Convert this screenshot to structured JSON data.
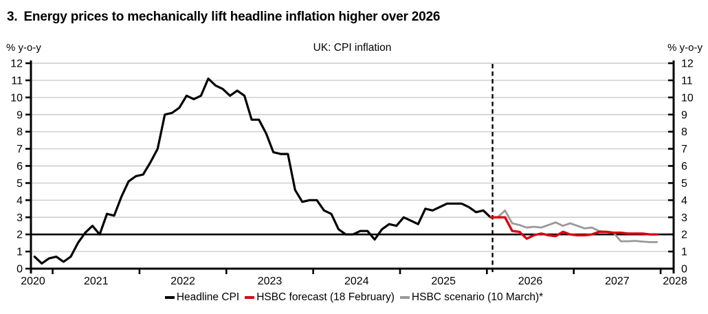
{
  "header": {
    "title_number": "3.",
    "title_text": "Energy prices to mechanically lift headline inflation higher over 2026"
  },
  "colors": {
    "grid": "#cbcbcb",
    "axis": "#000000",
    "target_line": "#000000",
    "divider": "#000000",
    "background": "#ffffff"
  },
  "chart_data": {
    "type": "line",
    "title": "UK: CPI inflation",
    "left_axis_label": "% y-o-y",
    "right_axis_label": "% y-o-y",
    "ylim": [
      0,
      12
    ],
    "yticks": [
      0,
      1,
      2,
      3,
      4,
      5,
      6,
      7,
      8,
      9,
      10,
      11,
      12
    ],
    "x_domain_years": [
      2020.75,
      2028.15
    ],
    "year_ticks": [
      2021,
      2022,
      2023,
      2024,
      2025,
      2026,
      2027,
      2028
    ],
    "year_labels": [
      "2020",
      "2021",
      "2022",
      "2023",
      "2024",
      "2025",
      "2026",
      "2027",
      "2028"
    ],
    "grid": true,
    "target_line_y": 2,
    "forecast_divider_year": 2026.065,
    "legend_position": "bottom",
    "series": [
      {
        "id": "headline-cpi",
        "name": "Headline CPI",
        "color": "#000000",
        "start_year": 2020,
        "start_month": 10,
        "values": [
          0.7,
          0.3,
          0.6,
          0.7,
          0.4,
          0.7,
          1.5,
          2.1,
          2.5,
          2.0,
          3.2,
          3.1,
          4.2,
          5.1,
          5.4,
          5.5,
          6.2,
          7.0,
          9.0,
          9.1,
          9.4,
          10.1,
          9.9,
          10.1,
          11.1,
          10.7,
          10.5,
          10.1,
          10.4,
          10.1,
          8.7,
          8.7,
          7.9,
          6.8,
          6.7,
          6.7,
          4.6,
          3.9,
          4.0,
          4.0,
          3.4,
          3.2,
          2.3,
          2.0,
          2.0,
          2.2,
          2.2,
          1.7,
          2.3,
          2.6,
          2.5,
          3.0,
          2.8,
          2.6,
          3.5,
          3.4,
          3.6,
          3.8,
          3.8,
          3.8,
          3.6,
          3.3,
          3.4,
          3.0
        ]
      },
      {
        "id": "hsbc-forecast",
        "name": "HSBC forecast (18 February)",
        "color": "#db000f",
        "start_year": 2026,
        "start_month": 1,
        "values": [
          3.0,
          3.0,
          3.0,
          2.2,
          2.15,
          1.75,
          1.95,
          2.05,
          1.95,
          1.9,
          2.15,
          2.0,
          1.95,
          1.95,
          2.0,
          2.15,
          2.15,
          2.1,
          2.1,
          2.05,
          2.05,
          2.05,
          2.0,
          2.0
        ]
      },
      {
        "id": "hsbc-scenario",
        "name": "HSBC scenario (10 March)*",
        "color": "#999999",
        "start_year": 2026,
        "start_month": 2,
        "values": [
          3.0,
          3.4,
          2.65,
          2.55,
          2.4,
          2.45,
          2.4,
          2.55,
          2.7,
          2.5,
          2.65,
          2.5,
          2.35,
          2.4,
          2.2,
          2.15,
          2.1,
          1.6,
          1.6,
          1.62,
          1.58,
          1.55,
          1.55
        ]
      }
    ]
  }
}
